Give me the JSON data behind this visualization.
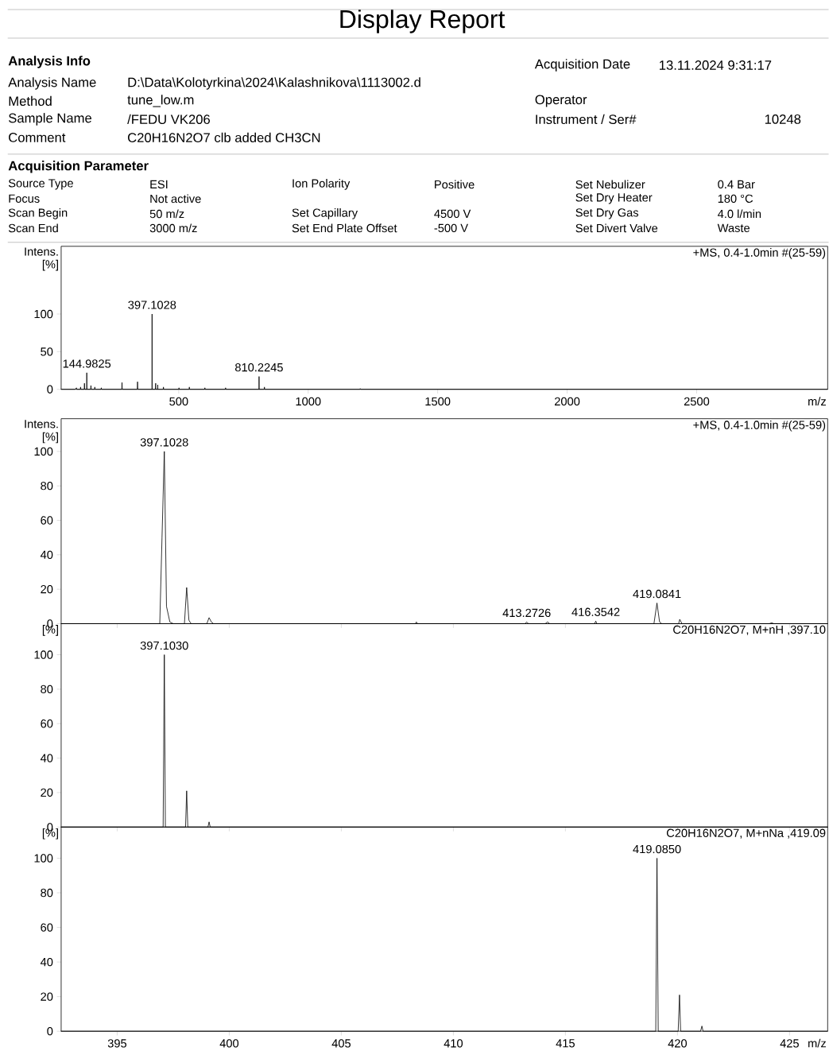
{
  "chart_data": [
    {
      "type": "other",
      "title": "Display Report",
      "annotations": [
        "Analysis Info",
        "Analysis Name",
        "D:\\Data\\Kolotyrkina\\2024\\Kalashnikova\\1113002.d",
        "Method",
        "tune_low.m",
        "Sample Name",
        "/FEDU VK206",
        "Comment",
        "C20H16N2O7 clb added CH3CN",
        "Acquisition Date",
        "13.11.2024 9:31:17",
        "Operator",
        "Instrument / Ser#",
        "10248",
        "Acquisition Parameter",
        "Source Type",
        "ESI",
        "Ion Polarity",
        "Positive",
        "Set Nebulizer",
        "0.4 Bar",
        "Focus",
        "Not active",
        "Set Dry Heater",
        "180 °C",
        "Scan Begin",
        "50 m/z",
        "Set Capillary",
        "4500 V",
        "Set Dry Gas",
        "4.0 l/min",
        "Scan End",
        "3000 m/z",
        "Set End Plate Offset",
        "-500 V",
        "Set Divert Valve",
        "Waste"
      ]
    },
    {
      "type": "line",
      "subtitle": "+MS, 0.4-1.0min #(25-59)",
      "xlabel": "m/z",
      "ylabel": "Intens. [%]",
      "color": "#000000",
      "xlim": [
        46,
        3006
      ],
      "ylim": [
        0,
        190
      ],
      "xticks": [
        500,
        1000,
        1500,
        2000,
        2500
      ],
      "yticks": [
        0,
        50,
        100
      ],
      "x": [
        46,
        100,
        105,
        106,
        120,
        121,
        122,
        135,
        136,
        137,
        144.9,
        144.9825,
        145.1,
        160,
        161,
        162,
        175,
        176,
        177,
        200,
        201,
        202,
        280,
        281,
        282,
        340,
        341,
        342,
        397,
        397.1028,
        397.2,
        410,
        411,
        412,
        419,
        419.1,
        419.2,
        440,
        441,
        442,
        500,
        501,
        502,
        540,
        541,
        542,
        600,
        601,
        602,
        680,
        681,
        682,
        810.1,
        810.2245,
        810.4,
        830,
        831,
        832,
        1200,
        1201,
        1202,
        3006
      ],
      "values": [
        0,
        0,
        2,
        0,
        0,
        3,
        0,
        0,
        8,
        0,
        0,
        22,
        0,
        0,
        5,
        0,
        0,
        3,
        0,
        0,
        2,
        0,
        0,
        9,
        0,
        0,
        10,
        0,
        0,
        100,
        0,
        0,
        8,
        0,
        0,
        6,
        0,
        0,
        3,
        0,
        0,
        2,
        0,
        0,
        3,
        0,
        0,
        2,
        0,
        0,
        2,
        0,
        0,
        17,
        0,
        0,
        3,
        0,
        0,
        1,
        0,
        0
      ],
      "annotations": [
        {
          "text": "144.9825",
          "x": 144.9825,
          "y": 22
        },
        {
          "text": "397.1028",
          "x": 397.1028,
          "y": 100
        },
        {
          "text": "810.2245",
          "x": 810.2245,
          "y": 17
        }
      ]
    },
    {
      "type": "line",
      "subtitle": "+MS, 0.4-1.0min #(25-59)",
      "ylabel": "Intens. [%]",
      "color": "#000000",
      "xlim": [
        392.5,
        426.7
      ],
      "ylim": [
        0,
        119
      ],
      "xticks": [
        395,
        400,
        405,
        410,
        415,
        420,
        425
      ],
      "yticks": [
        0,
        20,
        40,
        60,
        80,
        100
      ],
      "tick_labels": "y",
      "x": [
        392.5,
        396.9,
        397.0,
        397.1028,
        397.2,
        397.35,
        397.5,
        398.0,
        398.1,
        398.2,
        398.3,
        399.0,
        399.1,
        399.2,
        399.3,
        408.3,
        408.35,
        408.4,
        413.2,
        413.2726,
        413.35,
        414.1,
        414.2,
        414.3,
        416.3,
        416.3542,
        416.4,
        418.95,
        419.0841,
        419.2,
        419.3,
        420.05,
        420.1,
        420.2,
        424.1,
        424.2,
        424.3,
        426.7
      ],
      "values": [
        0,
        0,
        50,
        100,
        10,
        1,
        0,
        0,
        21,
        2,
        0,
        0,
        3.5,
        1,
        0,
        0,
        1,
        0,
        0,
        1,
        0,
        0,
        1,
        0,
        0,
        1.5,
        0,
        0,
        12,
        1,
        0,
        0,
        2.5,
        0,
        0,
        0.5,
        0,
        0
      ],
      "annotations": [
        {
          "text": "397.1028",
          "x": 397.1028,
          "y": 100
        },
        {
          "text": "413.2726",
          "x": 413.2726,
          "y": 1
        },
        {
          "text": "416.3542",
          "x": 416.3542,
          "y": 1.5
        },
        {
          "text": "419.0841",
          "x": 419.0841,
          "y": 12
        }
      ]
    },
    {
      "type": "line",
      "subtitle": "C20H16N2O7, M+nH ,397.10",
      "ylabel": "[%]",
      "color": "#000000",
      "xlim": [
        392.5,
        426.7
      ],
      "ylim": [
        0,
        118
      ],
      "xticks": [
        395,
        400,
        405,
        410,
        415,
        420,
        425
      ],
      "yticks": [
        0,
        20,
        40,
        60,
        80,
        100
      ],
      "tick_labels": "y",
      "x": [
        392.5,
        397.05,
        397.103,
        397.15,
        398.05,
        398.1,
        398.15,
        399.05,
        399.1,
        399.15,
        426.7
      ],
      "values": [
        0,
        0,
        100,
        0,
        0,
        21,
        0,
        0,
        3,
        0,
        0
      ],
      "annotations": [
        {
          "text": "397.1030",
          "x": 397.103,
          "y": 100
        }
      ]
    },
    {
      "type": "line",
      "subtitle": "C20H16N2O7, M+nNa ,419.09",
      "xlabel": "m/z",
      "ylabel": "[%]",
      "color": "#000000",
      "xlim": [
        392.5,
        426.7
      ],
      "ylim": [
        0,
        118
      ],
      "xticks": [
        395,
        400,
        405,
        410,
        415,
        420,
        425
      ],
      "yticks": [
        0,
        20,
        40,
        60,
        80,
        100
      ],
      "x": [
        392.5,
        419.03,
        419.085,
        419.14,
        420.03,
        420.09,
        420.14,
        421.03,
        421.09,
        421.14,
        426.7
      ],
      "values": [
        0,
        0,
        100,
        0,
        0,
        21,
        0,
        0,
        3,
        0,
        0
      ],
      "annotations": [
        {
          "text": "419.0850",
          "x": 419.085,
          "y": 100
        }
      ]
    }
  ]
}
